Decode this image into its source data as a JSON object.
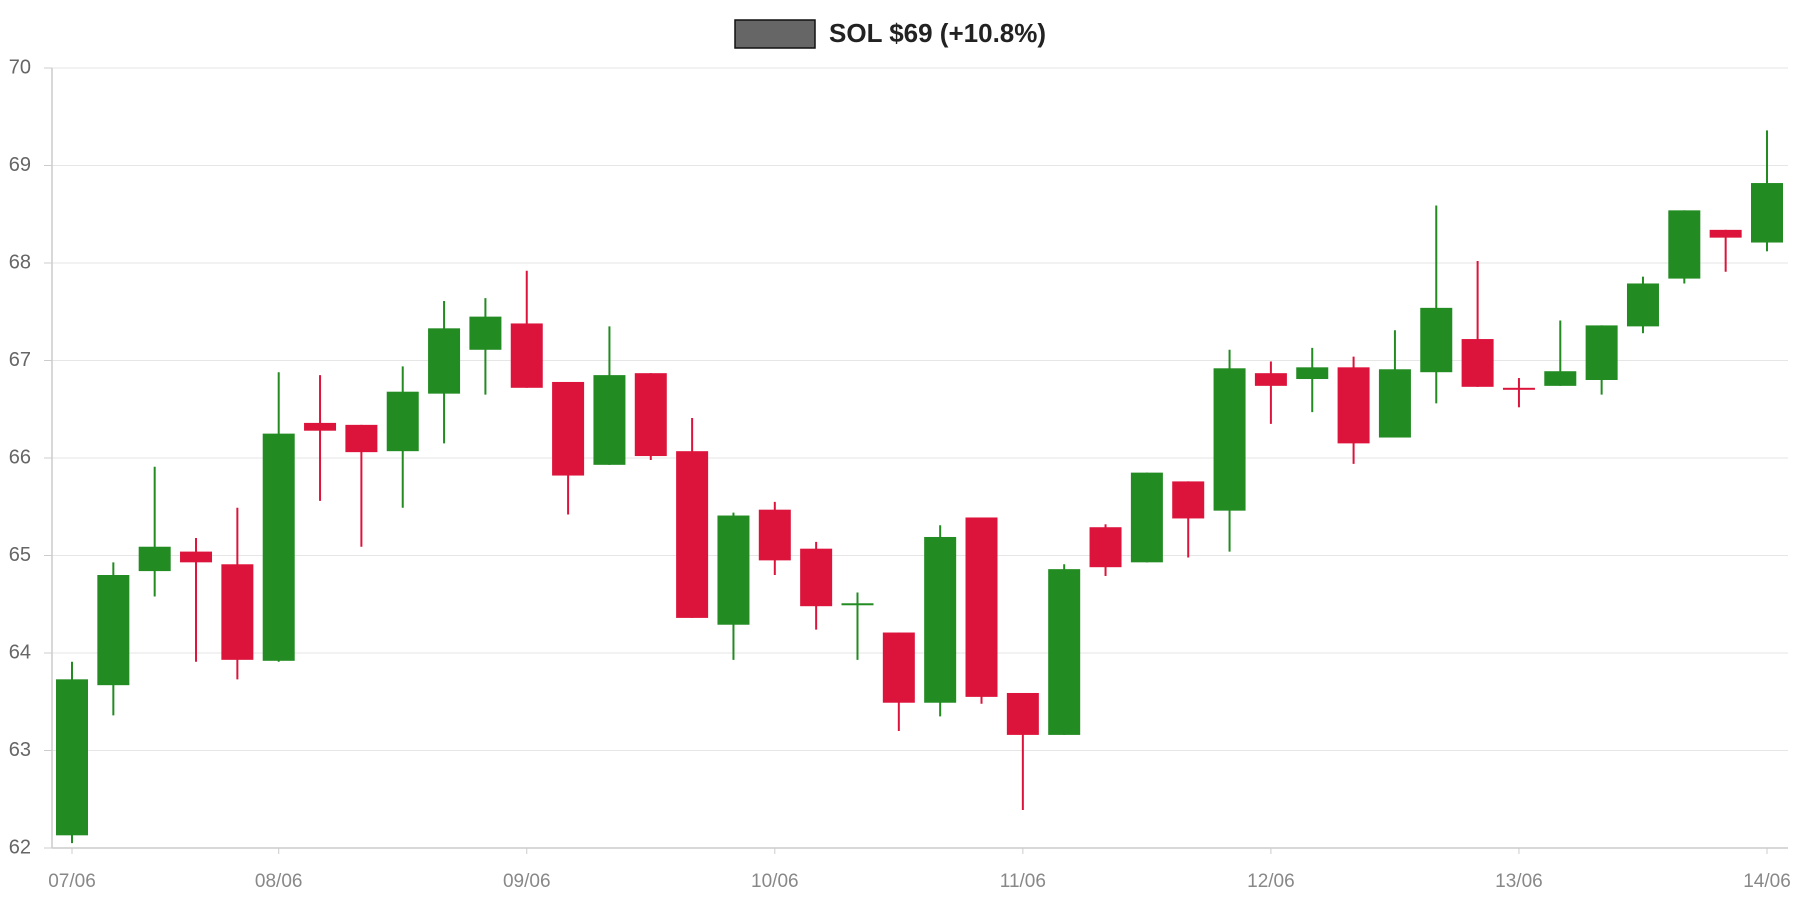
{
  "chart_data": {
    "type": "candlestick",
    "categories": [
      "07/06",
      null,
      null,
      null,
      null,
      "08/06",
      null,
      null,
      null,
      null,
      null,
      "09/06",
      null,
      null,
      null,
      null,
      null,
      "10/06",
      null,
      null,
      null,
      null,
      null,
      "11/06",
      null,
      null,
      null,
      null,
      null,
      "12/06",
      null,
      null,
      null,
      null,
      null,
      "13/06",
      null,
      null,
      null,
      null,
      null,
      "14/06"
    ],
    "series": [
      {
        "name": "SOL $69 (+10.8%)",
        "color": "#666666",
        "up_color": "#228b22",
        "down_color": "#dc143c",
        "open": [
          62.13,
          63.67,
          64.84,
          65.04,
          64.91,
          63.92,
          66.36,
          66.34,
          66.07,
          66.66,
          67.11,
          67.38,
          66.78,
          65.93,
          66.87,
          66.07,
          64.29,
          65.47,
          65.07,
          64.49,
          64.21,
          63.49,
          65.39,
          63.59,
          63.16,
          65.29,
          64.93,
          65.76,
          65.46,
          66.87,
          66.81,
          66.93,
          66.21,
          66.88,
          67.22,
          66.72,
          66.74,
          66.8,
          67.35,
          67.84,
          68.34,
          68.21
        ],
        "high": [
          63.91,
          64.93,
          65.91,
          65.18,
          65.49,
          66.88,
          66.85,
          66.34,
          66.94,
          67.61,
          67.64,
          67.92,
          66.78,
          67.35,
          66.87,
          66.41,
          65.44,
          65.55,
          65.14,
          64.62,
          64.21,
          65.31,
          65.39,
          63.59,
          64.91,
          65.32,
          65.85,
          65.76,
          67.11,
          66.99,
          67.13,
          67.04,
          67.31,
          68.59,
          68.02,
          66.82,
          67.41,
          67.36,
          67.86,
          68.54,
          68.34,
          69.36
        ],
        "low": [
          62.05,
          63.36,
          64.58,
          63.91,
          63.73,
          63.91,
          65.56,
          65.09,
          65.49,
          66.15,
          66.65,
          66.72,
          65.42,
          65.93,
          65.98,
          64.36,
          63.93,
          64.8,
          64.24,
          63.93,
          63.2,
          63.35,
          63.48,
          62.39,
          63.16,
          64.79,
          64.93,
          64.98,
          65.04,
          66.35,
          66.47,
          65.94,
          66.21,
          66.56,
          66.73,
          66.52,
          66.74,
          66.65,
          67.28,
          67.79,
          67.91,
          68.12
        ],
        "close": [
          63.73,
          64.8,
          65.09,
          64.93,
          63.93,
          66.25,
          66.28,
          66.06,
          66.68,
          67.33,
          67.45,
          66.72,
          65.82,
          66.85,
          66.02,
          64.36,
          65.41,
          64.95,
          64.48,
          64.51,
          63.49,
          65.19,
          63.55,
          63.16,
          64.86,
          64.88,
          65.85,
          65.38,
          66.92,
          66.74,
          66.93,
          66.15,
          66.91,
          67.54,
          66.73,
          66.7,
          66.89,
          67.36,
          67.79,
          68.54,
          68.26,
          68.82
        ]
      }
    ],
    "ylim": [
      62,
      70
    ],
    "yticks": [
      62,
      63,
      64,
      65,
      66,
      67,
      68,
      69,
      70
    ],
    "grid": true
  }
}
